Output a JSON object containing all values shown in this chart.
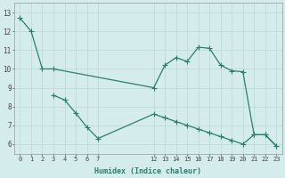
{
  "xlabel": "Humidex (Indice chaleur)",
  "line1_x": [
    0,
    1,
    2,
    3,
    12,
    13,
    14,
    15,
    16,
    17,
    18,
    19,
    20,
    21,
    22,
    23
  ],
  "line1_y": [
    12.7,
    12.0,
    10.0,
    10.0,
    9.0,
    10.2,
    10.6,
    10.4,
    11.15,
    11.1,
    10.2,
    9.9,
    9.85,
    6.5,
    6.5,
    5.9
  ],
  "line2_x": [
    3,
    4,
    5,
    6,
    7,
    12,
    13,
    14,
    15,
    16,
    17,
    18,
    19,
    20,
    21,
    22,
    23
  ],
  "line2_y": [
    8.6,
    8.35,
    7.65,
    6.9,
    6.3,
    7.6,
    7.4,
    7.2,
    7.0,
    6.8,
    6.6,
    6.4,
    6.2,
    6.0,
    6.5,
    6.5,
    5.9
  ],
  "line_color": "#2d7d6e",
  "bg_color": "#d4eceb",
  "grid_color": "#b8d8d6",
  "ylim": [
    5.5,
    13.5
  ],
  "yticks": [
    6,
    7,
    8,
    9,
    10,
    11,
    12,
    13
  ],
  "xlim": [
    -0.5,
    23.5
  ],
  "xticks": [
    0,
    1,
    2,
    3,
    4,
    5,
    6,
    7,
    12,
    13,
    14,
    15,
    16,
    17,
    18,
    19,
    20,
    21,
    22,
    23
  ],
  "xtick_labels": [
    "0",
    "1",
    "2",
    "3",
    "4",
    "5",
    "6",
    "7",
    "12",
    "13",
    "14",
    "15",
    "16",
    "17",
    "18",
    "19",
    "20",
    "21",
    "22",
    "23"
  ],
  "markersize": 2.5,
  "linewidth": 0.9
}
